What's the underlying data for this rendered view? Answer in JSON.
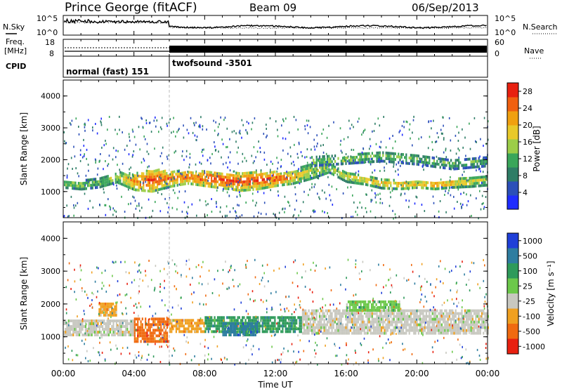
{
  "header": {
    "station": "Prince George (fitACF)",
    "beam": "Beam 09",
    "date": "06/Sep/2013"
  },
  "noise_panel": {
    "left_label": "N.Sky",
    "right_label": "N.Search",
    "left_ticks": [
      "10^5",
      "10^0"
    ],
    "right_ticks": [
      "10^5",
      "10^0"
    ]
  },
  "freq_panel": {
    "left_label_1": "Freq.",
    "left_label_2": "[MHz]",
    "right_label": "Nave",
    "left_ticks": [
      "18",
      "8"
    ],
    "right_ticks": [
      "60",
      "0"
    ]
  },
  "cpid_panel": {
    "label": "CPID",
    "modes": [
      {
        "name": "normal (fast) 151",
        "start_hour": 0,
        "end_hour": 6
      },
      {
        "name": "twofsound -3501",
        "start_hour": 6,
        "end_hour": 24
      }
    ]
  },
  "chart_data": [
    {
      "type": "heatmap",
      "title": "",
      "ylabel": "Slant Range [km]",
      "xlim": [
        0,
        24
      ],
      "ylim": [
        180,
        4500
      ],
      "yticks": [
        "1000",
        "2000",
        "3000",
        "4000"
      ],
      "colorbar": {
        "label": "Power [dB]",
        "ticks": [
          "4",
          "8",
          "12",
          "16",
          "20",
          "24",
          "28"
        ],
        "range": [
          0,
          30
        ],
        "colors": [
          "#1f2cff",
          "#2b4fb8",
          "#2e7d66",
          "#3aa65a",
          "#9ccd48",
          "#e8c92a",
          "#f0a010",
          "#f06010",
          "#e82010"
        ]
      },
      "main_band": [
        {
          "hour": 0.0,
          "center_km": 1280,
          "width_km": 220,
          "level": 14
        },
        {
          "hour": 1.0,
          "center_km": 1250,
          "width_km": 260,
          "level": 16
        },
        {
          "hour": 2.0,
          "center_km": 1320,
          "width_km": 280,
          "level": 14
        },
        {
          "hour": 3.0,
          "center_km": 1500,
          "width_km": 320,
          "level": 16
        },
        {
          "hour": 4.0,
          "center_km": 1350,
          "width_km": 500,
          "level": 24
        },
        {
          "hour": 5.0,
          "center_km": 1400,
          "width_km": 700,
          "level": 28
        },
        {
          "hour": 6.0,
          "center_km": 1450,
          "width_km": 500,
          "level": 24
        },
        {
          "hour": 7.0,
          "center_km": 1500,
          "width_km": 400,
          "level": 26
        },
        {
          "hour": 8.0,
          "center_km": 1450,
          "width_km": 450,
          "level": 28
        },
        {
          "hour": 9.0,
          "center_km": 1400,
          "width_km": 500,
          "level": 28
        },
        {
          "hour": 10.0,
          "center_km": 1350,
          "width_km": 550,
          "level": 27
        },
        {
          "hour": 11.0,
          "center_km": 1400,
          "width_km": 550,
          "level": 28
        },
        {
          "hour": 12.0,
          "center_km": 1450,
          "width_km": 450,
          "level": 27
        },
        {
          "hour": 13.0,
          "center_km": 1500,
          "width_km": 400,
          "level": 22
        },
        {
          "hour": 14.0,
          "center_km": 1700,
          "width_km": 500,
          "level": 16
        },
        {
          "hour": 15.0,
          "center_km": 1800,
          "width_km": 300,
          "level": 16
        },
        {
          "hour": 16.0,
          "center_km": 1500,
          "width_km": 300,
          "level": 18
        },
        {
          "hour": 17.0,
          "center_km": 1400,
          "width_km": 250,
          "level": 20
        },
        {
          "hour": 18.0,
          "center_km": 1300,
          "width_km": 300,
          "level": 20
        },
        {
          "hour": 19.0,
          "center_km": 1250,
          "width_km": 250,
          "level": 22
        },
        {
          "hour": 20.0,
          "center_km": 1300,
          "width_km": 250,
          "level": 22
        },
        {
          "hour": 21.0,
          "center_km": 1250,
          "width_km": 250,
          "level": 24
        },
        {
          "hour": 22.0,
          "center_km": 1300,
          "width_km": 250,
          "level": 22
        },
        {
          "hour": 23.0,
          "center_km": 1350,
          "width_km": 300,
          "level": 18
        },
        {
          "hour": 24.0,
          "center_km": 1400,
          "width_km": 300,
          "level": 16
        }
      ],
      "upper_band": [
        {
          "hour": 14.0,
          "center_km": 2000,
          "width_km": 300,
          "level": 14
        },
        {
          "hour": 16.0,
          "center_km": 2050,
          "width_km": 250,
          "level": 16
        },
        {
          "hour": 18.0,
          "center_km": 2150,
          "width_km": 300,
          "level": 14
        },
        {
          "hour": 20.0,
          "center_km": 2050,
          "width_km": 300,
          "level": 14
        },
        {
          "hour": 22.0,
          "center_km": 1900,
          "width_km": 300,
          "level": 12
        },
        {
          "hour": 24.0,
          "center_km": 2000,
          "width_km": 300,
          "level": 12
        }
      ]
    },
    {
      "type": "heatmap",
      "title": "",
      "xlabel": "Time UT",
      "ylabel": "Slant Range [km]",
      "xlim": [
        0,
        24
      ],
      "ylim": [
        180,
        4500
      ],
      "xticks": [
        "00:00",
        "04:00",
        "08:00",
        "12:00",
        "16:00",
        "20:00",
        "00:00"
      ],
      "yticks": [
        "1000",
        "2000",
        "3000",
        "4000"
      ],
      "colorbar": {
        "label": "Velocity [m s⁻¹]",
        "ticks": [
          "1000",
          "500",
          "100",
          "25",
          "-25",
          "-100",
          "-500",
          "-1000"
        ],
        "colors": [
          "#1f3fd8",
          "#2e7da0",
          "#2e9a5a",
          "#6cc84a",
          "#c8c8c0",
          "#f0a020",
          "#f06a10",
          "#e82010"
        ]
      },
      "segments": [
        {
          "start_hour": 0.0,
          "end_hour": 4.0,
          "center_km": 1350,
          "width_km": 500,
          "class": "-25"
        },
        {
          "start_hour": 2.0,
          "end_hour": 3.0,
          "center_km": 1900,
          "width_km": 400,
          "class": "-100"
        },
        {
          "start_hour": 4.0,
          "end_hour": 6.0,
          "center_km": 1250,
          "width_km": 700,
          "class": "-500"
        },
        {
          "start_hour": 6.0,
          "end_hour": 8.0,
          "center_km": 1400,
          "width_km": 400,
          "class": "-100"
        },
        {
          "start_hour": 8.0,
          "end_hour": 13.5,
          "center_km": 1450,
          "width_km": 500,
          "class": "100"
        },
        {
          "start_hour": 9.0,
          "end_hour": 11.0,
          "center_km": 1300,
          "width_km": 400,
          "class": "500"
        },
        {
          "start_hour": 13.5,
          "end_hour": 24.0,
          "center_km": 1500,
          "width_km": 700,
          "class": "-25"
        },
        {
          "start_hour": 16.0,
          "end_hour": 19.0,
          "center_km": 2000,
          "width_km": 300,
          "class": "25"
        }
      ]
    }
  ]
}
